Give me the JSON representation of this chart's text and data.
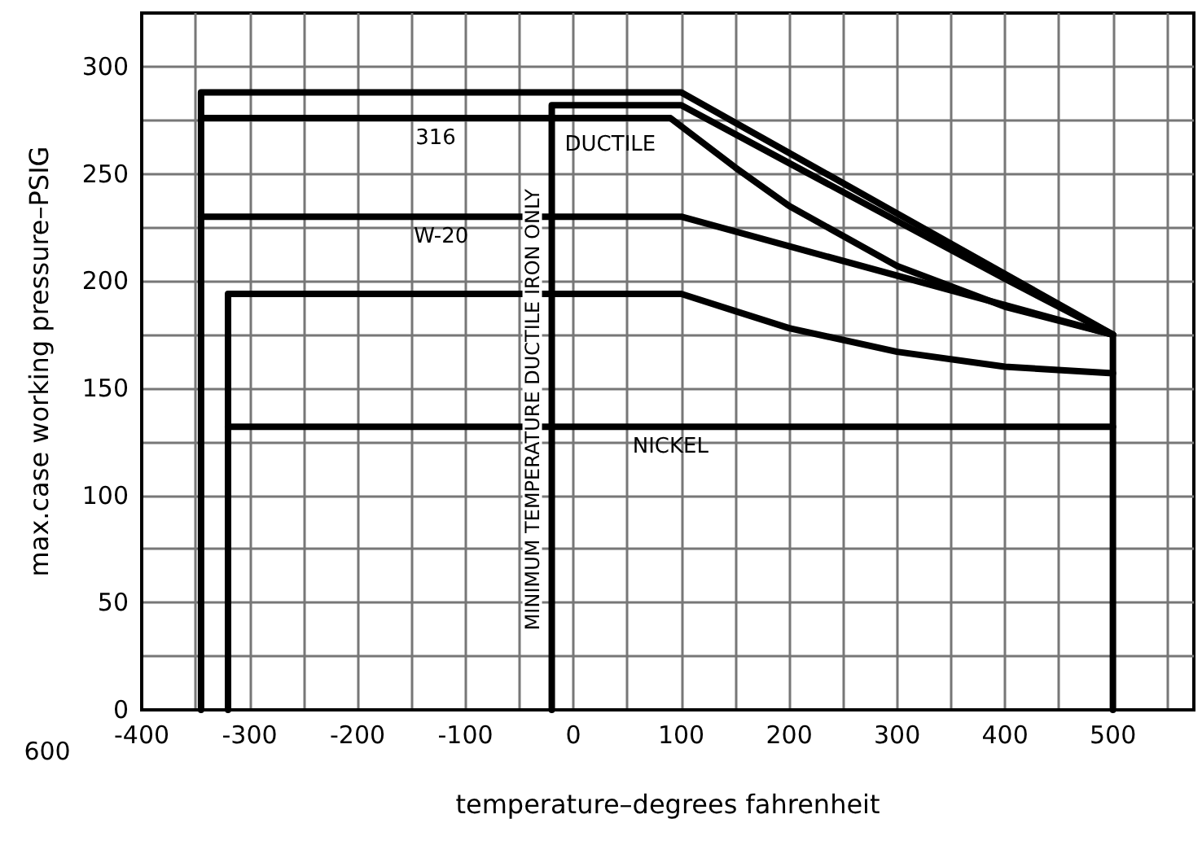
{
  "chart_data": {
    "type": "line",
    "xlabel": "temperature–degrees fahrenheit",
    "ylabel": "max.case working pressure–PSIG",
    "xlim": [
      -400,
      575
    ],
    "ylim": [
      0,
      325
    ],
    "xticks": [
      -400,
      {
        "value": -350,
        "label": null
      },
      -300,
      {
        "value": -250,
        "label": null
      },
      -200,
      {
        "value": -150,
        "label": null
      },
      -100,
      {
        "value": -50,
        "label": null
      },
      0,
      {
        "value": 50,
        "label": null
      },
      100,
      {
        "value": 150,
        "label": null
      },
      200,
      {
        "value": 250,
        "label": null
      },
      300,
      {
        "value": 350,
        "label": null
      },
      400,
      {
        "value": 450,
        "label": null
      },
      500,
      {
        "value": 550,
        "label": null
      }
    ],
    "yticks": [
      0,
      {
        "value": 25,
        "label": null
      },
      50,
      {
        "value": 75,
        "label": null
      },
      100,
      {
        "value": 125,
        "label": null
      },
      150,
      {
        "value": 175,
        "label": null
      },
      200,
      {
        "value": 225,
        "label": null
      },
      250,
      {
        "value": 275,
        "label": null
      },
      300
    ],
    "grid": true,
    "marker": "none",
    "line_style": "solid",
    "series": [
      {
        "color": "#000000",
        "x": [
          -345,
          -345,
          100,
          500,
          500
        ],
        "values": [
          0,
          288,
          288,
          175,
          0
        ]
      },
      {
        "name": "DUCTILE",
        "color": "#000000",
        "x": [
          -20,
          -20,
          100,
          200,
          300,
          400,
          500
        ],
        "values": [
          0,
          282,
          282,
          255,
          228,
          201,
          175
        ]
      },
      {
        "name": "316",
        "color": "#000000",
        "x": [
          -345,
          90,
          150,
          200,
          300,
          400,
          500
        ],
        "values": [
          276,
          276,
          253,
          235,
          207,
          188,
          175
        ]
      },
      {
        "name": "W-20",
        "color": "#000000",
        "x": [
          -345,
          100,
          500
        ],
        "values": [
          230,
          230,
          175
        ]
      },
      {
        "color": "#000000",
        "x": [
          -320,
          -320,
          100,
          150,
          200,
          300,
          400,
          500
        ],
        "values": [
          0,
          194,
          194,
          186,
          178,
          167,
          160,
          157
        ]
      },
      {
        "name": "NICKEL",
        "color": "#000000",
        "x": [
          -320,
          500
        ],
        "values": [
          132,
          132
        ]
      }
    ],
    "annotations": [
      {
        "text": "MINIMUM TEMPERATURE DUCTILE IRON ONLY",
        "x": -20,
        "y": 140
      },
      "600"
    ]
  }
}
